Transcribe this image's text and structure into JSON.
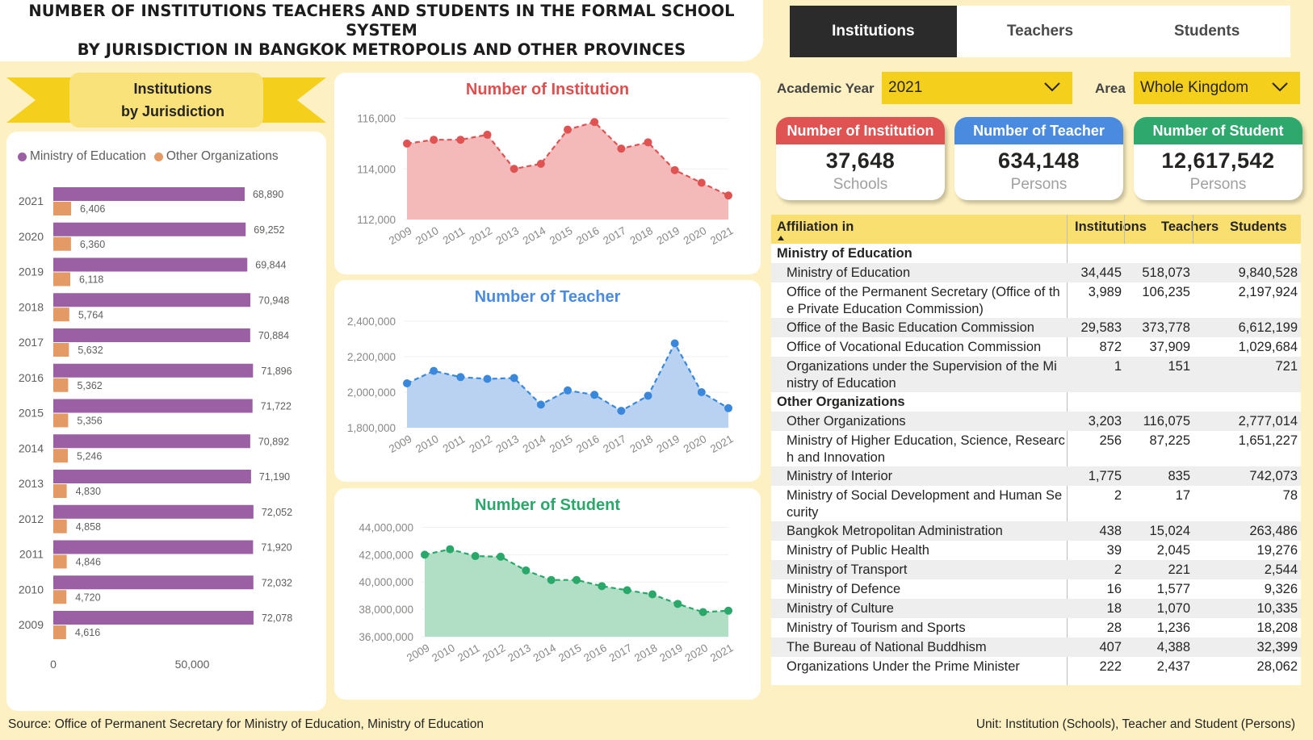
{
  "title": {
    "line1": "NUMBER OF INSTITUTIONS TEACHERS AND STUDENTS IN THE FORMAL SCHOOL SYSTEM",
    "line2": "BY JURISDICTION IN BANGKOK METROPOLIS AND OTHER PROVINCES"
  },
  "tabs": [
    "Institutions",
    "Teachers",
    "Students"
  ],
  "active_tab": "Institutions",
  "ribbon": {
    "line1": "Institutions",
    "line2": "by Jurisdiction"
  },
  "colors": {
    "purple": "#9b5fa3",
    "orange": "#e39a65",
    "red": "#e05353",
    "red_fill": "#f3b3b3",
    "blue": "#3a88dc",
    "blue_fill": "#b1cdf1",
    "green": "#2aa86a",
    "green_fill": "#a8dcc0",
    "yellow": "#f4cf1c",
    "kpi_red": "#e05353",
    "kpi_blue": "#4a8be0",
    "kpi_green": "#2fa86d",
    "title_red": "#df4f4f",
    "title_blue": "#4a8be0",
    "title_green": "#2aa86a"
  },
  "filters": {
    "year_label": "Academic Year",
    "year_value": "2021",
    "area_label": "Area",
    "area_value": "Whole Kingdom"
  },
  "kpis": [
    {
      "label": "Number of Institution",
      "value": "37,648",
      "unit": "Schools"
    },
    {
      "label": "Number of Teacher",
      "value": "634,148",
      "unit": "Persons"
    },
    {
      "label": "Number of Student",
      "value": "12,617,542",
      "unit": "Persons"
    }
  ],
  "chart_data": [
    {
      "type": "bar",
      "orientation": "horizontal",
      "legend": [
        "Ministry of Education",
        "Other Organizations"
      ],
      "categories": [
        "2021",
        "2020",
        "2019",
        "2018",
        "2017",
        "2016",
        "2015",
        "2014",
        "2013",
        "2012",
        "2011",
        "2010",
        "2009"
      ],
      "series": [
        {
          "name": "Ministry of Education",
          "values": [
            68890,
            69252,
            69844,
            70948,
            70884,
            71896,
            71722,
            70892,
            71190,
            72052,
            71920,
            72032,
            72078
          ],
          "labels": [
            "68,890",
            "69,252",
            "69,844",
            "70,948",
            "70,884",
            "71,896",
            "71,722",
            "70,892",
            "71,190",
            "72,052",
            "71,920",
            "72,032",
            "72,078"
          ]
        },
        {
          "name": "Other Organizations",
          "values": [
            6406,
            6360,
            6118,
            5764,
            5632,
            5362,
            5356,
            5246,
            4830,
            4858,
            4846,
            4720,
            4616
          ],
          "labels": [
            "6,406",
            "6,360",
            "6,118",
            "5,764",
            "5,632",
            "5,362",
            "5,356",
            "5,246",
            "4,830",
            "4,858",
            "4,846",
            "4,720",
            "4,616"
          ]
        }
      ],
      "xlim": [
        0,
        80000
      ],
      "xticks": [
        "0",
        "50,000"
      ]
    },
    {
      "type": "area",
      "title": "Number of Institution",
      "x": [
        "2009",
        "2010",
        "2011",
        "2012",
        "2013",
        "2014",
        "2015",
        "2016",
        "2017",
        "2018",
        "2019",
        "2020",
        "2021"
      ],
      "values": [
        115000,
        115150,
        115150,
        115350,
        114000,
        114200,
        115550,
        115850,
        114800,
        115050,
        113950,
        113450,
        112950
      ],
      "ylim": [
        112000,
        116400
      ],
      "yticks": [
        112000,
        114000,
        116000
      ],
      "ytick_labels": [
        "112,000",
        "114,000",
        "116,000"
      ]
    },
    {
      "type": "area",
      "title": "Number of Teacher",
      "x": [
        "2009",
        "2010",
        "2011",
        "2012",
        "2013",
        "2014",
        "2015",
        "2016",
        "2017",
        "2018",
        "2019",
        "2020",
        "2021"
      ],
      "values": [
        2050000,
        2120000,
        2085000,
        2075000,
        2080000,
        1930000,
        2010000,
        1985000,
        1895000,
        1980000,
        2275000,
        2000000,
        1910000
      ],
      "ylim": [
        1800000,
        2450000
      ],
      "yticks": [
        1800000,
        2000000,
        2200000,
        2400000
      ],
      "ytick_labels": [
        "1,800,000",
        "2,000,000",
        "2,200,000",
        "2,400,000"
      ]
    },
    {
      "type": "area",
      "title": "Number of Student",
      "x": [
        "2009",
        "2010",
        "2011",
        "2012",
        "2013",
        "2014",
        "2015",
        "2016",
        "2017",
        "2018",
        "2019",
        "2020",
        "2021"
      ],
      "values": [
        42000000,
        42400000,
        41900000,
        41850000,
        40850000,
        40150000,
        40150000,
        39700000,
        39400000,
        39100000,
        38400000,
        37800000,
        37900000
      ],
      "ylim": [
        36000000,
        44500000
      ],
      "yticks": [
        36000000,
        38000000,
        40000000,
        42000000,
        44000000
      ],
      "ytick_labels": [
        "36,000,000",
        "38,000,000",
        "40,000,000",
        "42,000,000",
        "44,000,000"
      ]
    }
  ],
  "table": {
    "headers": [
      "Affiliation in",
      "Institutions",
      "Teachers",
      "Students"
    ],
    "rows": [
      {
        "type": "group",
        "name": "Ministry of Education"
      },
      {
        "name": "Ministry of Education",
        "inst": "34,445",
        "teach": "518,073",
        "stud": "9,840,528"
      },
      {
        "name": "Office of the Permanent Secretary (Office of th e Private Education Commission)",
        "inst": "3,989",
        "teach": "106,235",
        "stud": "2,197,924"
      },
      {
        "name": "Office of the Basic Education Commission",
        "inst": "29,583",
        "teach": "373,778",
        "stud": "6,612,199"
      },
      {
        "name": "Office of Vocational Education Commission",
        "inst": "872",
        "teach": "37,909",
        "stud": "1,029,684"
      },
      {
        "name": "Organizations under the Supervision of the Mi nistry of Education",
        "inst": "1",
        "teach": "151",
        "stud": "721"
      },
      {
        "type": "group",
        "name": "Other Organizations"
      },
      {
        "name": "Other Organizations",
        "inst": "3,203",
        "teach": "116,075",
        "stud": "2,777,014"
      },
      {
        "name": "Ministry of Higher Education, Science, Researc h and Innovation",
        "inst": "256",
        "teach": "87,225",
        "stud": "1,651,227"
      },
      {
        "name": "Ministry of Interior",
        "inst": "1,775",
        "teach": "835",
        "stud": "742,073"
      },
      {
        "name": "Ministry of Social Development and Human Se curity",
        "inst": "2",
        "teach": "17",
        "stud": "78"
      },
      {
        "name": "Bangkok Metropolitan Administration",
        "inst": "438",
        "teach": "15,024",
        "stud": "263,486"
      },
      {
        "name": "Ministry of Public Health",
        "inst": "39",
        "teach": "2,045",
        "stud": "19,276"
      },
      {
        "name": "Ministry of Transport",
        "inst": "2",
        "teach": "221",
        "stud": "2,544"
      },
      {
        "name": "Ministry of Defence",
        "inst": "16",
        "teach": "1,577",
        "stud": "9,326"
      },
      {
        "name": "Ministry of Culture",
        "inst": "18",
        "teach": "1,070",
        "stud": "10,335"
      },
      {
        "name": "Ministry of Tourism and Sports",
        "inst": "28",
        "teach": "1,236",
        "stud": "18,208"
      },
      {
        "name": "The Bureau of National Buddhism",
        "inst": "407",
        "teach": "4,388",
        "stud": "32,399"
      },
      {
        "name": "Organizations Under the Prime Minister",
        "inst": "222",
        "teach": "2,437",
        "stud": "28,062"
      }
    ]
  },
  "footer": {
    "source": "Source: Office of Permanent Secretary for Ministry of Education, Ministry of Education",
    "unit": "Unit: Institution (Schools), Teacher and Student (Persons)"
  }
}
